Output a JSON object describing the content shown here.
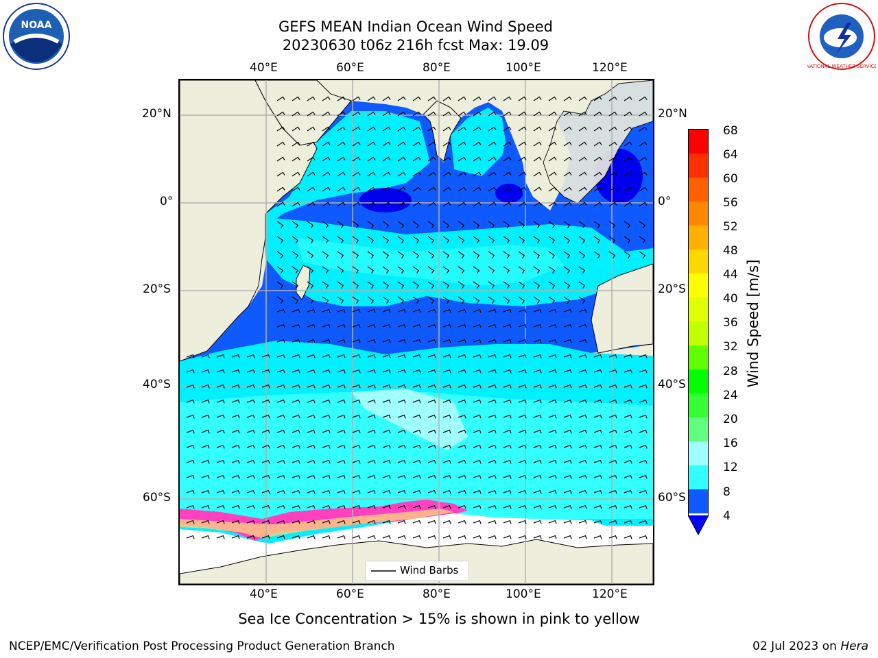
{
  "header": {
    "title_line1": "GEFS MEAN Indian Ocean Wind Speed",
    "title_line2": "20230630 t06z 216h fcst   Max: 19.09"
  },
  "logos": {
    "left": "NOAA",
    "right": "NATIONAL WEATHER SERVICE"
  },
  "map": {
    "lon_ticks": [
      "40°E",
      "60°E",
      "80°E",
      "100°E",
      "120°E"
    ],
    "lat_ticks": [
      "20°N",
      "0°",
      "20°S",
      "40°S",
      "60°S"
    ],
    "legend_label": "Wind Barbs",
    "background_land": "#eeeedd",
    "wind_colors": {
      "4-8": "#0f5aff",
      "8-12": "#00f0ff",
      "12-16": "#33ffff",
      "16-20": "#a0ffff",
      "<4": "#0000ee"
    },
    "sea_ice_colors": [
      "#ff40c0",
      "#ff90b0",
      "#ffd080"
    ]
  },
  "colorbar": {
    "label": "Wind Speed [m/s]",
    "ticks": [
      "68",
      "64",
      "60",
      "56",
      "52",
      "48",
      "44",
      "40",
      "36",
      "32",
      "28",
      "24",
      "20",
      "16",
      "12",
      "8",
      "4"
    ],
    "colors": [
      "#ff0000",
      "#ff3000",
      "#ff6000",
      "#ff8800",
      "#ffb000",
      "#ffd800",
      "#ffff00",
      "#e0ff00",
      "#c0ff00",
      "#60ff00",
      "#00ff00",
      "#33ff33",
      "#60ff80",
      "#a0ffff",
      "#33ffff",
      "#00f0ff",
      "#0f5aff"
    ],
    "extend_color": "#0000ff"
  },
  "footer": {
    "caption": "Sea Ice Concentration > 15% is shown in pink to yellow",
    "credit": "NCEP/EMC/Verification Post Processing Product Generation Branch",
    "date": "02 Jul 2023 on",
    "host": "Hera"
  }
}
